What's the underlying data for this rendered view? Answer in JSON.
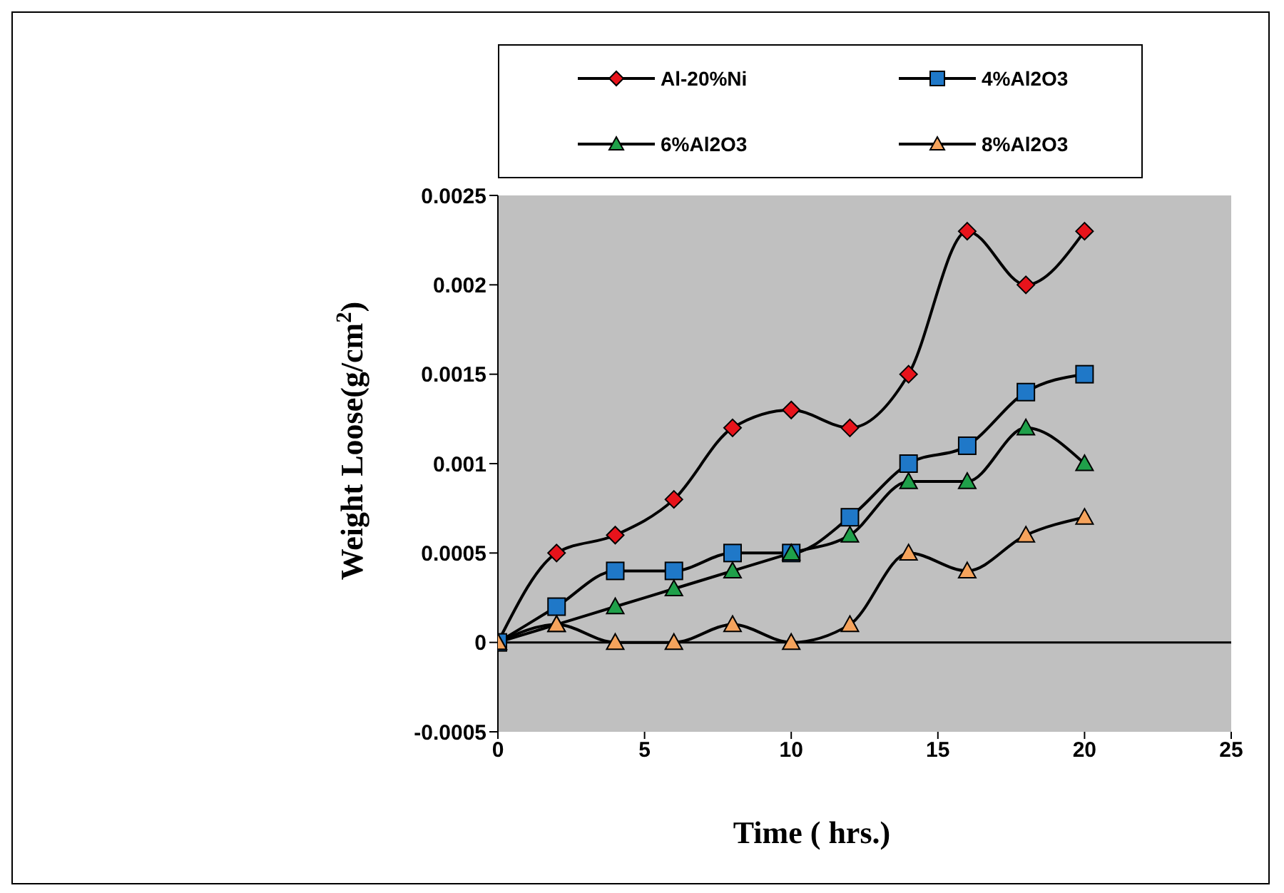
{
  "chart_data": {
    "type": "line",
    "xlabel": "Time ( hrs.)",
    "ylabel": "Weight Loose(g/cm$^{2}$)",
    "x": [
      0,
      2,
      4,
      6,
      8,
      10,
      12,
      14,
      16,
      18,
      20
    ],
    "series": [
      {
        "name": "Al-20%Ni",
        "color": "#e8131b",
        "marker": "diamond",
        "values": [
          0,
          0.0005,
          0.0006,
          0.0008,
          0.0012,
          0.0013,
          0.0012,
          0.0015,
          0.0023,
          0.002,
          0.0023
        ]
      },
      {
        "name": "4%Al2O3",
        "color": "#1f78c8",
        "marker": "square",
        "values": [
          0,
          0.0002,
          0.0004,
          0.0004,
          0.0005,
          0.0005,
          0.0007,
          0.001,
          0.0011,
          0.0014,
          0.0015
        ]
      },
      {
        "name": "6%Al2O3",
        "color": "#1fa04a",
        "marker": "triangle",
        "values": [
          0,
          0.0001,
          0.0002,
          0.0003,
          0.0004,
          0.0005,
          0.0006,
          0.0009,
          0.0009,
          0.0012,
          0.001
        ]
      },
      {
        "name": "8%Al2O3",
        "color": "#f5a35c",
        "marker": "triangle",
        "values": [
          0,
          0.0001,
          0,
          0,
          0.0001,
          0,
          0.0001,
          0.0005,
          0.0004,
          0.0006,
          0.0007
        ]
      }
    ],
    "xlim": [
      0,
      25
    ],
    "xticks": [
      0,
      5,
      10,
      15,
      20,
      25
    ],
    "ylim": [
      -0.0005,
      0.0025
    ],
    "yticks": [
      -0.0005,
      0,
      0.0005,
      0.001,
      0.0015,
      0.002,
      0.0025
    ],
    "grid": false,
    "ref_lines": [
      {
        "axis": "y",
        "value": 0
      }
    ],
    "legend": "top",
    "line_style": "solid"
  }
}
